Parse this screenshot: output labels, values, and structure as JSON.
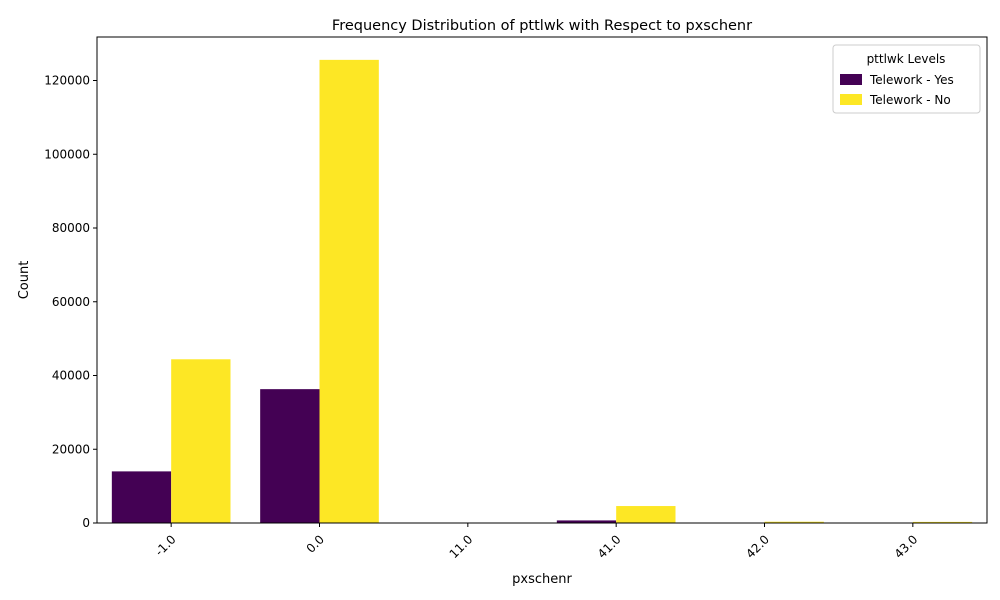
{
  "chart_data": {
    "type": "bar",
    "title": "Frequency Distribution of pttlwk with Respect to pxschenr",
    "xlabel": "pxschenr",
    "ylabel": "Count",
    "categories": [
      "-1.0",
      "0.0",
      "11.0",
      "41.0",
      "42.0",
      "43.0"
    ],
    "series": [
      {
        "name": "Telework - Yes",
        "color": "#440154",
        "values": [
          14000,
          36300,
          0,
          700,
          40,
          30
        ]
      },
      {
        "name": "Telework - No",
        "color": "#fde725",
        "values": [
          44400,
          125600,
          0,
          4600,
          350,
          300
        ]
      }
    ],
    "ylim": [
      0,
      131800
    ],
    "yticks": [
      0,
      20000,
      40000,
      60000,
      80000,
      100000,
      120000
    ],
    "grid": false,
    "legend": {
      "title": "pttlwk Levels",
      "placement": "top-right"
    },
    "xtick_rotation": -45
  }
}
